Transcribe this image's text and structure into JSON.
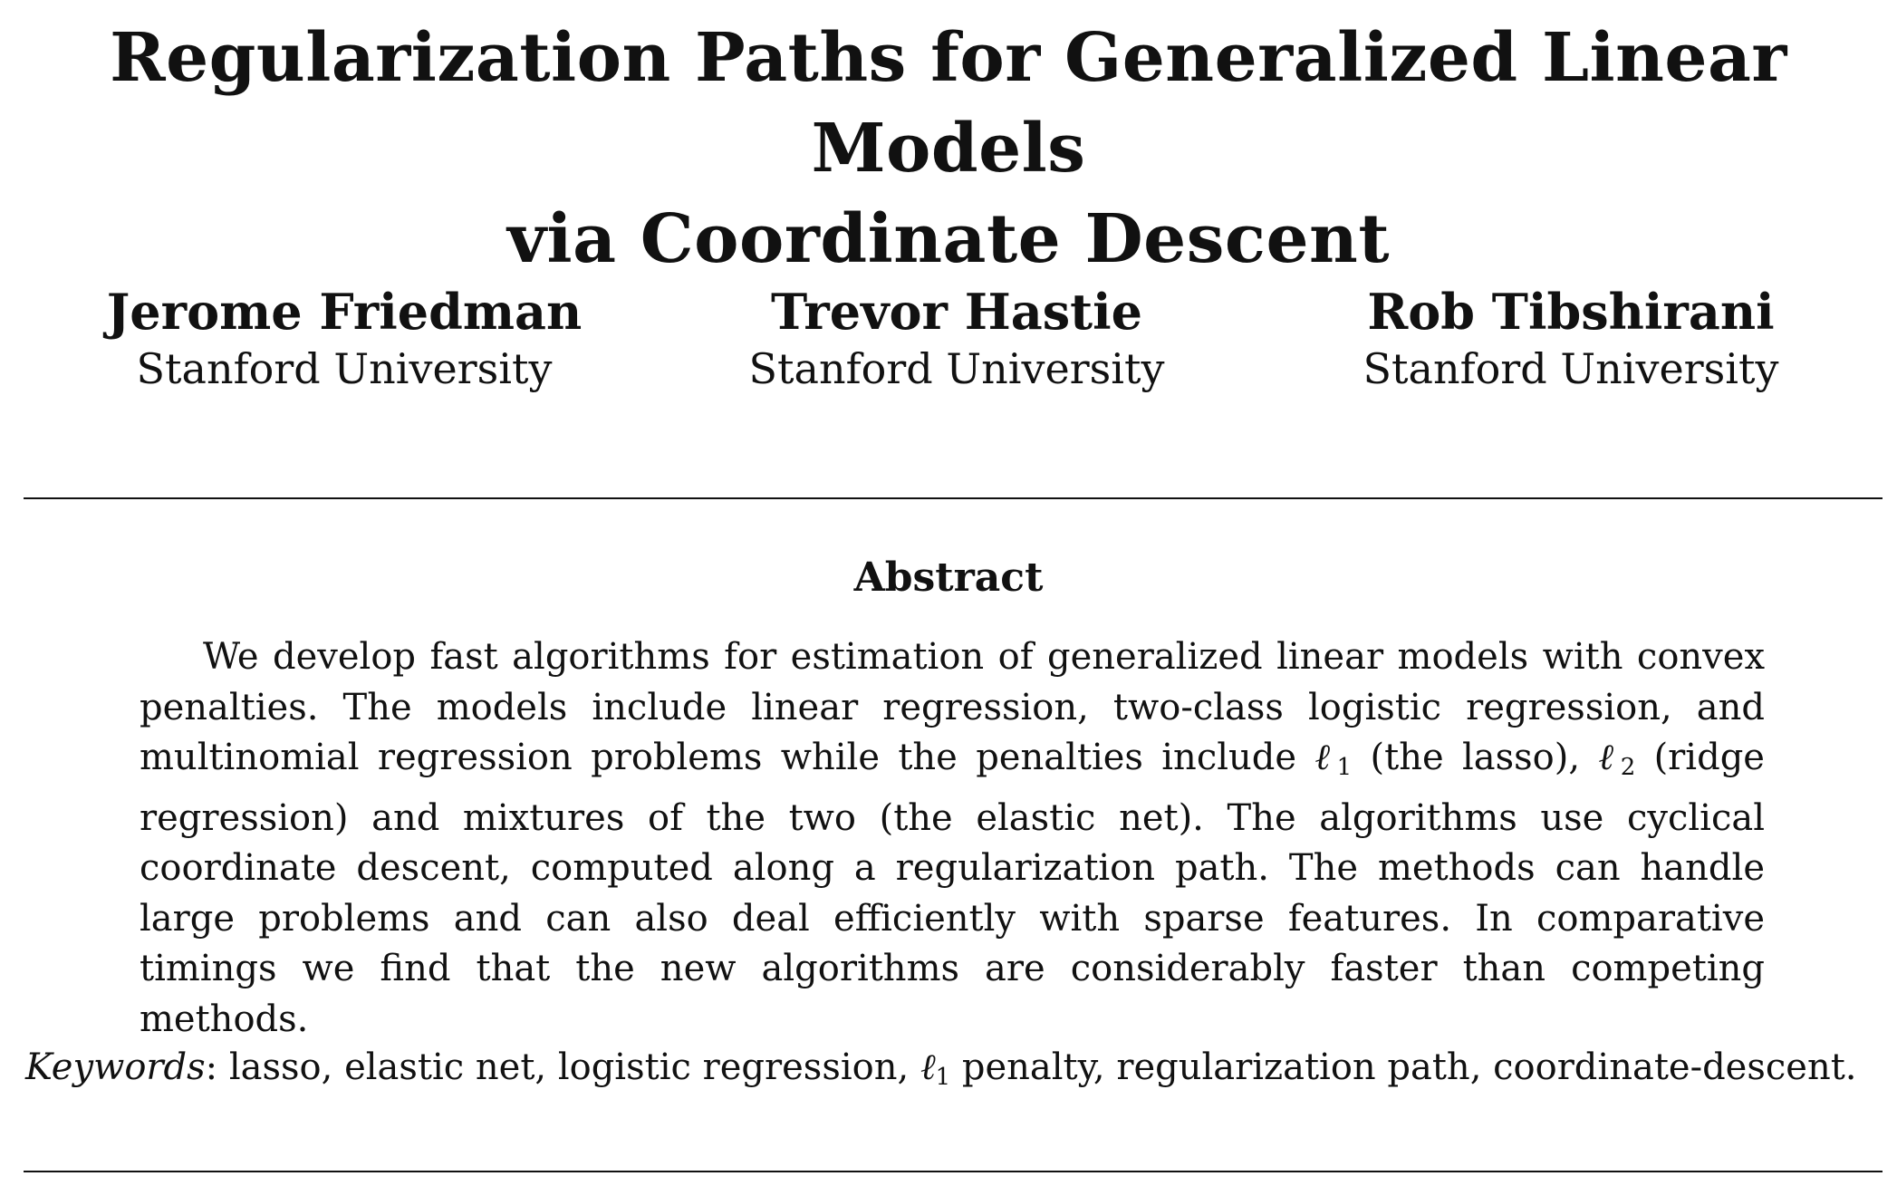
{
  "paper": {
    "title_line1": "Regularization Paths for Generalized Linear Models",
    "title_line2": "via Coordinate Descent",
    "authors": [
      {
        "name": "Jerome Friedman",
        "affiliation": "Stanford University"
      },
      {
        "name": "Trevor Hastie",
        "affiliation": "Stanford University"
      },
      {
        "name": "Rob Tibshirani",
        "affiliation": "Stanford University"
      }
    ],
    "abstract_heading": "Abstract",
    "abstract": {
      "part1": "We develop fast algorithms for estimation of generalized linear models with convex penalties. The models include linear regression, two-class logistic regression, and multinomial regression problems while the penalties include ",
      "l1_symbol": "ℓ",
      "l1_sub": "1",
      "part2": " (the lasso), ",
      "l2_symbol": "ℓ",
      "l2_sub": "2",
      "part3": " (ridge regression) and mixtures of the two (the elastic net). The algorithms use cyclical coordinate descent, computed along a regularization path. The methods can handle large problems and can also deal efficiently with sparse features. In comparative timings we find that the new algorithms are considerably faster than competing methods."
    },
    "keywords": {
      "label": "Keywords",
      "separator": ": ",
      "part1": "lasso, elastic net, logistic regression, ",
      "l1_symbol": "ℓ",
      "l1_sub": "1",
      "part2": " penalty, regularization path, coordinate-descent."
    }
  }
}
